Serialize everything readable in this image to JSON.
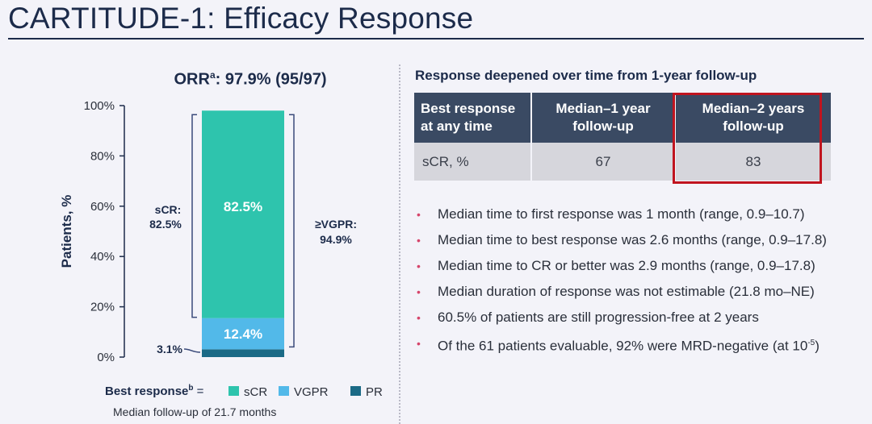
{
  "page": {
    "title": "CARTITUDE-1: Efficacy Response"
  },
  "orr": {
    "label": "ORR",
    "sup": "a",
    "value": ": 97.9% (95/97)"
  },
  "chart_data": {
    "type": "bar",
    "stacked": true,
    "categories": [
      ""
    ],
    "series": [
      {
        "name": "PR",
        "values": [
          3.1
        ],
        "color": "#1b6a86"
      },
      {
        "name": "VGPR",
        "values": [
          12.4
        ],
        "color": "#52b9e9"
      },
      {
        "name": "sCR",
        "values": [
          82.5
        ],
        "color": "#2ec4ad"
      }
    ],
    "ylabel": "Patients, %",
    "ylim": [
      0,
      100
    ],
    "yticks": [
      "0%",
      "20%",
      "40%",
      "60%",
      "80%",
      "100%"
    ],
    "ytick_values": [
      0,
      20,
      40,
      60,
      80,
      100
    ],
    "data_labels": {
      "sCR": "82.5%",
      "VGPR": "12.4%",
      "PR": "3.1%"
    },
    "annotations": {
      "scr_bracket_label": "sCR:",
      "scr_bracket_value": "82.5%",
      "vgpr_bracket_label": "≥VGPR:",
      "vgpr_bracket_value": "94.9%"
    },
    "legend": {
      "title": "Best response",
      "title_sup": "b",
      "suffix": " =",
      "items": [
        {
          "label": "sCR",
          "color": "#2ec4ad"
        },
        {
          "label": "VGPR",
          "color": "#52b9e9"
        },
        {
          "label": "PR",
          "color": "#1b6a86"
        }
      ]
    },
    "footnote": "Median follow-up of 21.7 months"
  },
  "table": {
    "title": "Response deepened over time from 1-year follow-up",
    "headers": [
      "Best response at any time",
      "Median–1 year follow-up",
      "Median–2 years follow-up"
    ],
    "rows": [
      [
        "sCR, %",
        "67",
        "83"
      ]
    ]
  },
  "bullets": [
    {
      "text": "Median time to first response was 1 month (range, 0.9–10.7)"
    },
    {
      "text": "Median time to best response was 2.6 months (range, 0.9–17.8)"
    },
    {
      "text": "Median time to CR or better was 2.9 months (range, 0.9–17.8)"
    },
    {
      "text": "Median duration of response was not estimable (21.8 mo–NE)"
    },
    {
      "text": "60.5% of patients are still progression-free at 2 years"
    },
    {
      "text": "Of the 61 patients evaluable, 92% were MRD-negative (at 10",
      "sup": "-5",
      "after": ")"
    }
  ],
  "colors": {
    "accent_red": "#c0141f",
    "bullet": "#d6456b",
    "header_bg": "#3a4a63"
  }
}
